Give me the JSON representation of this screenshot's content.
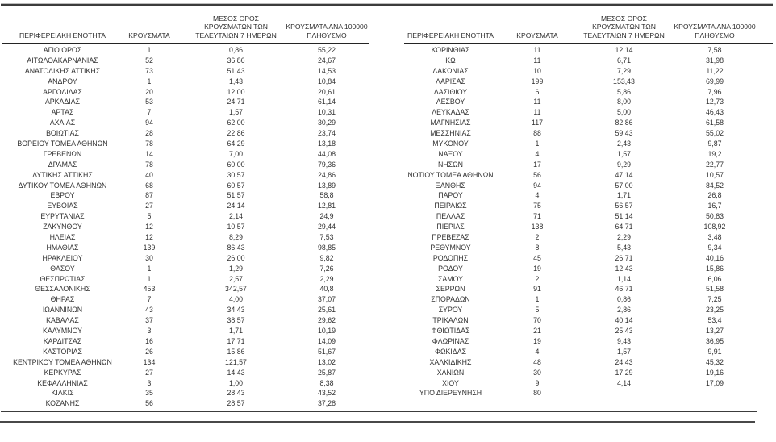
{
  "page": {
    "background": "#ffffff",
    "text_color": "#323232",
    "rule_color": "#3c3c3c",
    "language": "el"
  },
  "table": {
    "column_headers": [
      {
        "lines": [
          "ΠΕΡΙΦΕΡΕΙΑΚΗ ΕΝΟΤΗΤΑ"
        ],
        "key": "region"
      },
      {
        "lines": [
          "ΚΡΟΥΣΜΑΤΑ"
        ],
        "key": "cases"
      },
      {
        "lines": [
          "ΜΕΣΟΣ ΟΡΟΣ",
          "ΚΡΟΥΣΜΑΤΩΝ ΤΩΝ",
          "ΤΕΛΕΥΤΑΙΩΝ 7 ΗΜΕΡΩΝ"
        ],
        "key": "avg7"
      },
      {
        "lines": [
          "ΚΡΟΥΣΜΑΤΑ ΑΝΑ 100000",
          "ΠΛΗΘΥΣΜΟ"
        ],
        "key": "per100k"
      }
    ],
    "left_rows": [
      [
        "ΑΓΙΟ ΟΡΟΣ",
        "1",
        "0,86",
        "55,22"
      ],
      [
        "ΑΙΤΩΛΟΑΚΑΡΝΑΝΙΑΣ",
        "52",
        "36,86",
        "24,67"
      ],
      [
        "ΑΝΑΤΟΛΙΚΗΣ ΑΤΤΙΚΗΣ",
        "73",
        "51,43",
        "14,53"
      ],
      [
        "ΑΝΔΡΟΥ",
        "1",
        "1,43",
        "10,84"
      ],
      [
        "ΑΡΓΟΛΙΔΑΣ",
        "20",
        "12,00",
        "20,61"
      ],
      [
        "ΑΡΚΑΔΙΑΣ",
        "53",
        "24,71",
        "61,14"
      ],
      [
        "ΑΡΤΑΣ",
        "7",
        "1,57",
        "10,31"
      ],
      [
        "ΑΧΑΪΑΣ",
        "94",
        "62,00",
        "30,29"
      ],
      [
        "ΒΟΙΩΤΙΑΣ",
        "28",
        "22,86",
        "23,74"
      ],
      [
        "ΒΟΡΕΙΟΥ ΤΟΜΕΑ ΑΘΗΝΩΝ",
        "78",
        "64,29",
        "13,18"
      ],
      [
        "ΓΡΕΒΕΝΩΝ",
        "14",
        "7,00",
        "44,08"
      ],
      [
        "ΔΡΑΜΑΣ",
        "78",
        "60,00",
        "79,36"
      ],
      [
        "ΔΥΤΙΚΗΣ ΑΤΤΙΚΗΣ",
        "40",
        "30,57",
        "24,86"
      ],
      [
        "ΔΥΤΙΚΟΥ ΤΟΜΕΑ ΑΘΗΝΩΝ",
        "68",
        "60,57",
        "13,89"
      ],
      [
        "ΕΒΡΟΥ",
        "87",
        "51,57",
        "58,8"
      ],
      [
        "ΕΥΒΟΙΑΣ",
        "27",
        "24,14",
        "12,81"
      ],
      [
        "ΕΥΡΥΤΑΝΙΑΣ",
        "5",
        "2,14",
        "24,9"
      ],
      [
        "ΖΑΚΥΝΘΟΥ",
        "12",
        "10,57",
        "29,44"
      ],
      [
        "ΗΛΕΙΑΣ",
        "12",
        "8,29",
        "7,53"
      ],
      [
        "ΗΜΑΘΙΑΣ",
        "139",
        "86,43",
        "98,85"
      ],
      [
        "ΗΡΑΚΛΕΙΟΥ",
        "30",
        "26,00",
        "9,82"
      ],
      [
        "ΘΑΣΟΥ",
        "1",
        "1,29",
        "7,26"
      ],
      [
        "ΘΕΣΠΡΩΤΙΑΣ",
        "1",
        "2,57",
        "2,29"
      ],
      [
        "ΘΕΣΣΑΛΟΝΙΚΗΣ",
        "453",
        "342,57",
        "40,8"
      ],
      [
        "ΘΗΡΑΣ",
        "7",
        "4,00",
        "37,07"
      ],
      [
        "ΙΩΑΝΝΙΝΩΝ",
        "43",
        "34,43",
        "25,61"
      ],
      [
        "ΚΑΒΑΛΑΣ",
        "37",
        "38,57",
        "29,62"
      ],
      [
        "ΚΑΛΥΜΝΟΥ",
        "3",
        "1,71",
        "10,19"
      ],
      [
        "ΚΑΡΔΙΤΣΑΣ",
        "16",
        "17,71",
        "14,09"
      ],
      [
        "ΚΑΣΤΟΡΙΑΣ",
        "26",
        "15,86",
        "51,67"
      ],
      [
        "ΚΕΝΤΡΙΚΟΥ ΤΟΜΕΑ ΑΘΗΝΩΝ",
        "134",
        "121,57",
        "13,02"
      ],
      [
        "ΚΕΡΚΥΡΑΣ",
        "27",
        "14,43",
        "25,87"
      ],
      [
        "ΚΕΦΑΛΛΗΝΙΑΣ",
        "3",
        "1,00",
        "8,38"
      ],
      [
        "ΚΙΛΚΙΣ",
        "35",
        "28,43",
        "43,52"
      ],
      [
        "ΚΟΖΑΝΗΣ",
        "56",
        "28,57",
        "37,28"
      ]
    ],
    "right_rows": [
      [
        "ΚΟΡΙΝΘΙΑΣ",
        "11",
        "12,14",
        "7,58"
      ],
      [
        "ΚΩ",
        "11",
        "6,71",
        "31,98"
      ],
      [
        "ΛΑΚΩΝΙΑΣ",
        "10",
        "7,29",
        "11,22"
      ],
      [
        "ΛΑΡΙΣΑΣ",
        "199",
        "153,43",
        "69,99"
      ],
      [
        "ΛΑΣΙΘΙΟΥ",
        "6",
        "5,86",
        "7,96"
      ],
      [
        "ΛΕΣΒΟΥ",
        "11",
        "8,00",
        "12,73"
      ],
      [
        "ΛΕΥΚΑΔΑΣ",
        "11",
        "5,00",
        "46,43"
      ],
      [
        "ΜΑΓΝΗΣΙΑΣ",
        "117",
        "82,86",
        "61,58"
      ],
      [
        "ΜΕΣΣΗΝΙΑΣ",
        "88",
        "59,43",
        "55,02"
      ],
      [
        "ΜΥΚΟΝΟΥ",
        "1",
        "2,43",
        "9,87"
      ],
      [
        "ΝΑΞΟΥ",
        "4",
        "1,57",
        "19,2"
      ],
      [
        "ΝΗΣΩΝ",
        "17",
        "9,29",
        "22,77"
      ],
      [
        "ΝΟΤΙΟΥ ΤΟΜΕΑ ΑΘΗΝΩΝ",
        "56",
        "47,14",
        "10,57"
      ],
      [
        "ΞΑΝΘΗΣ",
        "94",
        "57,00",
        "84,52"
      ],
      [
        "ΠΑΡΟΥ",
        "4",
        "1,71",
        "26,8"
      ],
      [
        "ΠΕΙΡΑΙΩΣ",
        "75",
        "56,57",
        "16,7"
      ],
      [
        "ΠΕΛΛΑΣ",
        "71",
        "51,14",
        "50,83"
      ],
      [
        "ΠΙΕΡΙΑΣ",
        "138",
        "64,71",
        "108,92"
      ],
      [
        "ΠΡΕΒΕΖΑΣ",
        "2",
        "2,29",
        "3,48"
      ],
      [
        "ΡΕΘΥΜΝΟΥ",
        "8",
        "5,43",
        "9,34"
      ],
      [
        "ΡΟΔΟΠΗΣ",
        "45",
        "26,71",
        "40,16"
      ],
      [
        "ΡΟΔΟΥ",
        "19",
        "12,43",
        "15,86"
      ],
      [
        "ΣΑΜΟΥ",
        "2",
        "1,14",
        "6,06"
      ],
      [
        "ΣΕΡΡΩΝ",
        "91",
        "46,71",
        "51,58"
      ],
      [
        "ΣΠΟΡΑΔΩΝ",
        "1",
        "0,86",
        "7,25"
      ],
      [
        "ΣΥΡΟΥ",
        "5",
        "2,86",
        "23,25"
      ],
      [
        "ΤΡΙΚΑΛΩΝ",
        "70",
        "40,14",
        "53,4"
      ],
      [
        "ΦΘΙΩΤΙΔΑΣ",
        "21",
        "25,43",
        "13,27"
      ],
      [
        "ΦΛΩΡΙΝΑΣ",
        "19",
        "9,43",
        "36,95"
      ],
      [
        "ΦΩΚΙΔΑΣ",
        "4",
        "1,57",
        "9,91"
      ],
      [
        "ΧΑΛΚΙΔΙΚΗΣ",
        "48",
        "24,43",
        "45,32"
      ],
      [
        "ΧΑΝΙΩΝ",
        "30",
        "17,29",
        "19,16"
      ],
      [
        "ΧΙΟΥ",
        "9",
        "4,14",
        "17,09"
      ],
      [
        "ΥΠΟ ΔΙΕΡΕΥΝΗΣΗ",
        "80",
        "",
        ""
      ]
    ]
  }
}
